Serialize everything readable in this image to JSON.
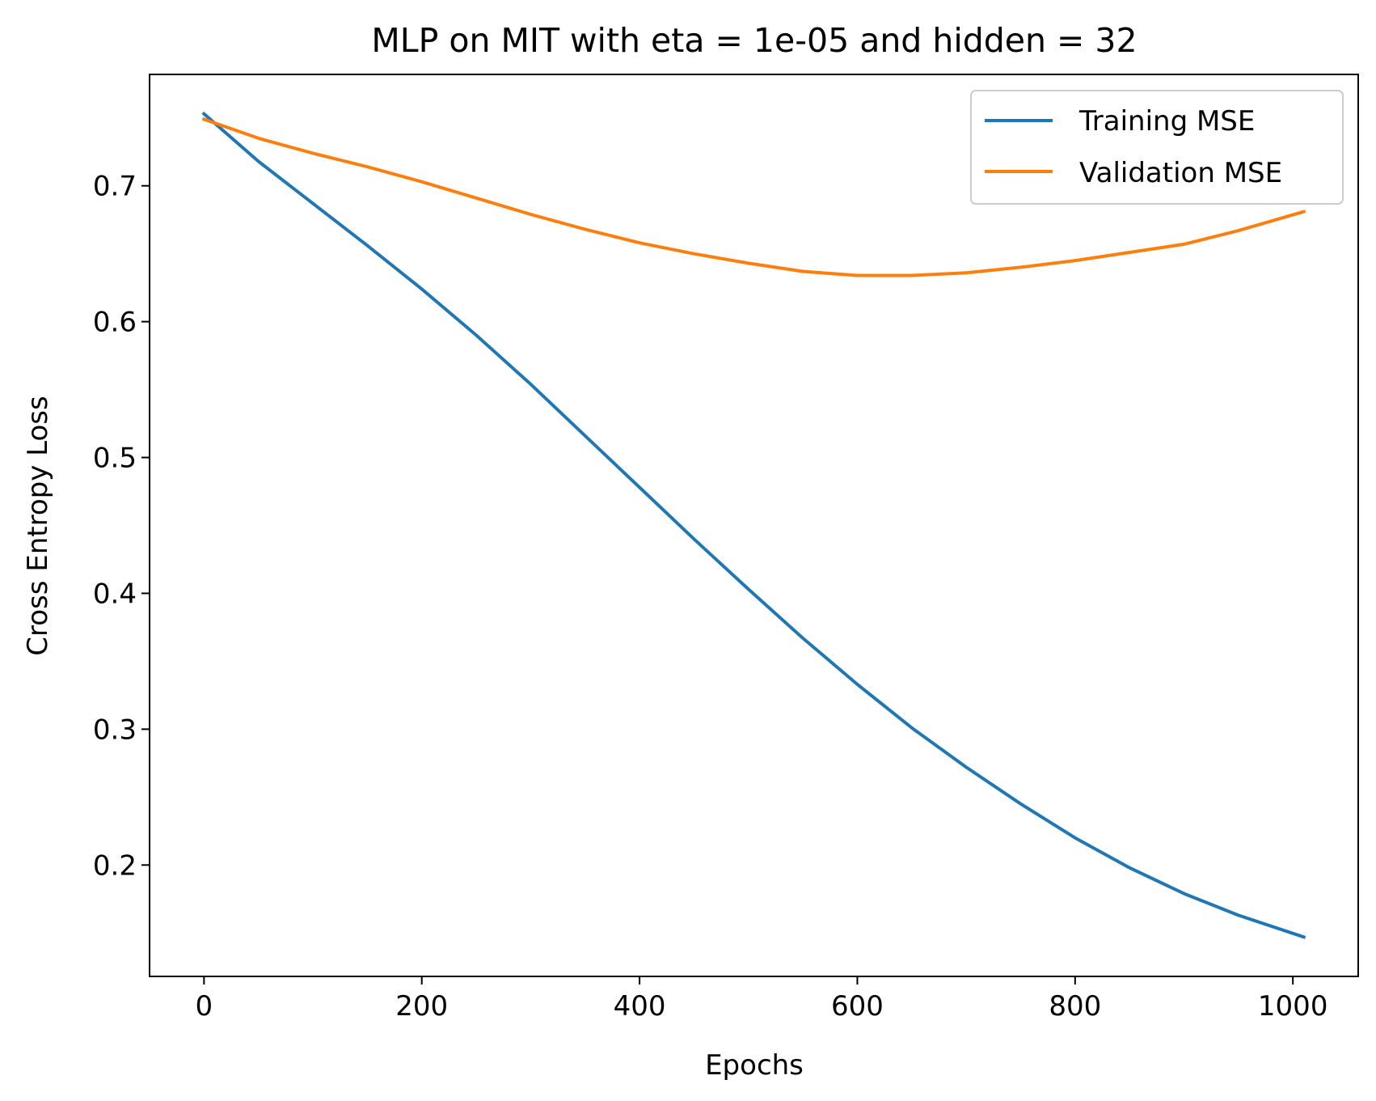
{
  "chart_data": {
    "type": "line",
    "title": "MLP on MIT with eta = 1e-05 and hidden = 32",
    "xlabel": "Epochs",
    "ylabel": "Cross Entropy Loss",
    "xlim": [
      -50,
      1060
    ],
    "ylim": [
      0.118,
      0.782
    ],
    "xticks": [
      0,
      200,
      400,
      600,
      800,
      1000
    ],
    "yticks": [
      0.2,
      0.3,
      0.4,
      0.5,
      0.6,
      0.7
    ],
    "xtick_labels": [
      "0",
      "200",
      "400",
      "600",
      "800",
      "1000"
    ],
    "ytick_labels": [
      "0.2",
      "0.3",
      "0.4",
      "0.5",
      "0.6",
      "0.7"
    ],
    "grid": false,
    "legend_position": "top-right",
    "series": [
      {
        "name": "Training MSE",
        "color": "#1f77b4",
        "x": [
          0,
          50,
          100,
          150,
          200,
          250,
          300,
          350,
          400,
          450,
          500,
          550,
          600,
          650,
          700,
          750,
          800,
          850,
          900,
          950,
          1010
        ],
        "y": [
          0.753,
          0.718,
          0.687,
          0.656,
          0.624,
          0.59,
          0.554,
          0.516,
          0.478,
          0.44,
          0.403,
          0.367,
          0.333,
          0.301,
          0.272,
          0.245,
          0.22,
          0.198,
          0.179,
          0.163,
          0.147
        ]
      },
      {
        "name": "Validation MSE",
        "color": "#ff7f0e",
        "x": [
          0,
          50,
          100,
          150,
          200,
          250,
          300,
          350,
          400,
          450,
          500,
          550,
          600,
          650,
          700,
          750,
          800,
          850,
          900,
          950,
          1010
        ],
        "y": [
          0.749,
          0.735,
          0.724,
          0.714,
          0.703,
          0.691,
          0.679,
          0.668,
          0.658,
          0.65,
          0.643,
          0.637,
          0.634,
          0.634,
          0.636,
          0.64,
          0.645,
          0.651,
          0.657,
          0.667,
          0.681
        ]
      }
    ]
  }
}
